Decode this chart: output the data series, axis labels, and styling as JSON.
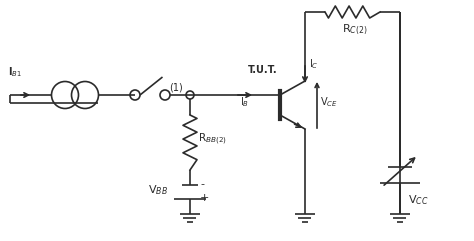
{
  "bg_color": "#ffffff",
  "line_color": "#2b2b2b",
  "lw": 1.2,
  "fig_width": 4.74,
  "fig_height": 2.41,
  "dpi": 100,
  "labels": {
    "IB1": "I$_{B1}$",
    "TUT": "T.U.T.",
    "IC": "I$_C$",
    "IB": "I$_B$",
    "VCE": "V$_{CE}$",
    "RC2": "R$_{C(2)}$",
    "RBB2": "R$_{BB(2)}$",
    "VBB": "V$_{BB}$",
    "VCC": "V$_{CC}$",
    "node1": "(1)"
  }
}
